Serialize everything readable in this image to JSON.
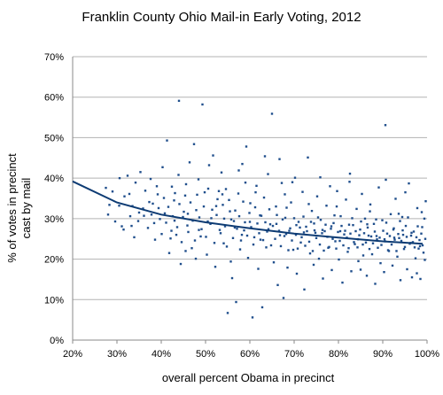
{
  "chart_data": {
    "type": "scatter",
    "title": "Franklin County Ohio Mail-in Early Voting, 2012",
    "xlabel": "overall percent Obama in precinct",
    "ylabel_lines": [
      "% of votes in precinct",
      "cast by mail"
    ],
    "xlim": [
      20,
      100
    ],
    "ylim": [
      0,
      70
    ],
    "x_ticks": [
      20,
      30,
      40,
      50,
      60,
      70,
      80,
      90,
      100
    ],
    "y_ticks": [
      0,
      10,
      20,
      30,
      40,
      50,
      60,
      70
    ],
    "x_tick_labels": [
      "20%",
      "30%",
      "40%",
      "50%",
      "60%",
      "70%",
      "80%",
      "90%",
      "100%"
    ],
    "y_tick_labels": [
      "0%",
      "10%",
      "20%",
      "30%",
      "40%",
      "50%",
      "60%",
      "70%"
    ],
    "grid": "horizontal",
    "legend": "none",
    "colors": {
      "points": "#1f4e8c",
      "trendline": "#0d3b73",
      "grid": "#b3b3b3",
      "axis": "#888888"
    },
    "trendline": {
      "type": "logarithmic",
      "x": [
        20,
        30,
        40,
        50,
        60,
        70,
        80,
        90,
        99
      ],
      "y": [
        39.2,
        34.0,
        31.0,
        29.1,
        27.6,
        26.3,
        25.3,
        24.4,
        23.8
      ]
    },
    "points": [
      [
        27.5,
        37.6
      ],
      [
        28.3,
        33.4
      ],
      [
        29.0,
        36.7
      ],
      [
        30.6,
        40.0
      ],
      [
        31.1,
        28.1
      ],
      [
        31.7,
        35.5
      ],
      [
        32.4,
        40.6
      ],
      [
        33.0,
        30.6
      ],
      [
        33.5,
        33.1
      ],
      [
        34.2,
        38.9
      ],
      [
        34.8,
        29.4
      ],
      [
        35.3,
        41.5
      ],
      [
        35.9,
        32.5
      ],
      [
        36.4,
        36.9
      ],
      [
        37.0,
        27.7
      ],
      [
        37.6,
        39.8
      ],
      [
        38.1,
        33.7
      ],
      [
        38.6,
        24.8
      ],
      [
        39.2,
        36.0
      ],
      [
        39.7,
        29.9
      ],
      [
        40.3,
        42.7
      ],
      [
        40.8,
        31.3
      ],
      [
        41.3,
        49.3
      ],
      [
        41.8,
        21.5
      ],
      [
        42.4,
        37.9
      ],
      [
        42.9,
        34.5
      ],
      [
        43.4,
        26.0
      ],
      [
        43.9,
        40.8
      ],
      [
        44.4,
        18.8
      ],
      [
        44.9,
        30.4
      ],
      [
        45.4,
        35.7
      ],
      [
        45.9,
        28.3
      ],
      [
        46.4,
        43.9
      ],
      [
        46.9,
        22.7
      ],
      [
        47.4,
        48.4
      ],
      [
        47.9,
        32.1
      ],
      [
        48.4,
        39.7
      ],
      [
        48.9,
        25.6
      ],
      [
        49.3,
        58.2
      ],
      [
        49.8,
        36.5
      ],
      [
        50.3,
        21.1
      ],
      [
        50.8,
        43.2
      ],
      [
        51.3,
        30.1
      ],
      [
        51.7,
        45.6
      ],
      [
        52.2,
        18.1
      ],
      [
        52.7,
        34.8
      ],
      [
        53.2,
        27.2
      ],
      [
        53.6,
        41.4
      ],
      [
        54.1,
        23.9
      ],
      [
        54.6,
        37.3
      ],
      [
        55.0,
        6.7
      ],
      [
        55.5,
        31.8
      ],
      [
        56.0,
        15.3
      ],
      [
        56.4,
        29.4
      ],
      [
        56.9,
        9.4
      ],
      [
        57.4,
        36.2
      ],
      [
        57.8,
        22.4
      ],
      [
        58.3,
        43.5
      ],
      [
        58.7,
        27.1
      ],
      [
        59.2,
        47.8
      ],
      [
        59.6,
        20.3
      ],
      [
        60.1,
        33.8
      ],
      [
        60.6,
        5.6
      ],
      [
        61.0,
        25.4
      ],
      [
        61.5,
        38.1
      ],
      [
        61.9,
        17.6
      ],
      [
        62.3,
        30.8
      ],
      [
        62.8,
        8.1
      ],
      [
        63.2,
        35.2
      ],
      [
        63.7,
        22.9
      ],
      [
        64.1,
        41.0
      ],
      [
        64.6,
        28.6
      ],
      [
        65.0,
        55.9
      ],
      [
        65.4,
        19.2
      ],
      [
        65.9,
        33.0
      ],
      [
        66.3,
        13.6
      ],
      [
        66.8,
        25.9
      ],
      [
        67.2,
        38.8
      ],
      [
        67.6,
        10.4
      ],
      [
        68.0,
        30.2
      ],
      [
        68.5,
        17.9
      ],
      [
        68.9,
        27.0
      ],
      [
        69.3,
        34.0
      ],
      [
        69.8,
        22.3
      ],
      [
        70.2,
        40.1
      ],
      [
        70.6,
        16.4
      ],
      [
        71.0,
        29.2
      ],
      [
        71.5,
        24.1
      ],
      [
        71.9,
        36.6
      ],
      [
        72.3,
        12.5
      ],
      [
        72.7,
        28.0
      ],
      [
        73.1,
        45.1
      ],
      [
        73.6,
        21.4
      ],
      [
        74.0,
        31.9
      ],
      [
        74.4,
        18.6
      ],
      [
        74.8,
        26.5
      ],
      [
        75.2,
        35.5
      ],
      [
        75.6,
        20.1
      ],
      [
        76.0,
        29.7
      ],
      [
        76.5,
        15.2
      ],
      [
        76.9,
        26.9
      ],
      [
        77.3,
        33.2
      ],
      [
        77.7,
        22.8
      ],
      [
        78.1,
        38.0
      ],
      [
        78.5,
        17.3
      ],
      [
        78.9,
        28.9
      ],
      [
        79.3,
        24.4
      ],
      [
        79.7,
        36.8
      ],
      [
        80.1,
        19.9
      ],
      [
        80.5,
        30.6
      ],
      [
        80.9,
        14.2
      ],
      [
        81.3,
        26.1
      ],
      [
        81.7,
        34.7
      ],
      [
        82.1,
        21.8
      ],
      [
        82.5,
        39.1
      ],
      [
        82.9,
        17.0
      ],
      [
        83.3,
        28.4
      ],
      [
        83.7,
        23.7
      ],
      [
        84.1,
        32.4
      ],
      [
        84.5,
        19.5
      ],
      [
        84.9,
        27.3
      ],
      [
        85.3,
        36.1
      ],
      [
        85.6,
        20.9
      ],
      [
        86.0,
        30.0
      ],
      [
        86.4,
        15.9
      ],
      [
        86.8,
        25.8
      ],
      [
        87.2,
        33.5
      ],
      [
        87.6,
        21.2
      ],
      [
        88.0,
        28.7
      ],
      [
        88.3,
        13.9
      ],
      [
        88.7,
        24.9
      ],
      [
        89.1,
        37.7
      ],
      [
        89.5,
        19.0
      ],
      [
        89.9,
        29.6
      ],
      [
        90.3,
        16.8
      ],
      [
        90.6,
        53.1
      ],
      [
        91.0,
        26.3
      ],
      [
        91.4,
        22.0
      ],
      [
        91.8,
        31.1
      ],
      [
        92.2,
        18.4
      ],
      [
        92.5,
        27.6
      ],
      [
        92.9,
        34.9
      ],
      [
        93.3,
        20.6
      ],
      [
        93.7,
        25.2
      ],
      [
        94.0,
        14.8
      ],
      [
        94.4,
        30.4
      ],
      [
        94.8,
        22.5
      ],
      [
        95.2,
        28.2
      ],
      [
        95.5,
        17.5
      ],
      [
        95.9,
        38.7
      ],
      [
        96.3,
        24.0
      ],
      [
        96.6,
        15.5
      ],
      [
        97.0,
        26.8
      ],
      [
        97.4,
        20.2
      ],
      [
        97.8,
        32.6
      ],
      [
        98.1,
        22.6
      ],
      [
        98.5,
        15.1
      ],
      [
        98.9,
        27.9
      ],
      [
        99.2,
        21.6
      ],
      [
        99.6,
        25.0
      ],
      [
        30.5,
        33.2
      ],
      [
        31.5,
        27.3
      ],
      [
        32.8,
        36.1
      ],
      [
        33.9,
        25.4
      ],
      [
        36.1,
        30.7
      ],
      [
        37.3,
        34.1
      ],
      [
        38.4,
        28.9
      ],
      [
        39.4,
        32.6
      ],
      [
        40.1,
        26.2
      ],
      [
        40.6,
        35.1
      ],
      [
        41.1,
        29.0
      ],
      [
        41.6,
        32.9
      ],
      [
        42.1,
        25.1
      ],
      [
        42.6,
        30.6
      ],
      [
        43.1,
        36.3
      ],
      [
        43.6,
        27.9
      ],
      [
        44.1,
        33.6
      ],
      [
        44.6,
        24.2
      ],
      [
        45.1,
        31.7
      ],
      [
        45.6,
        38.5
      ],
      [
        46.1,
        26.7
      ],
      [
        46.6,
        34.0
      ],
      [
        47.1,
        29.5
      ],
      [
        47.6,
        24.6
      ],
      [
        48.1,
        35.9
      ],
      [
        48.6,
        30.3
      ],
      [
        49.1,
        27.4
      ],
      [
        49.6,
        33.0
      ],
      [
        50.1,
        25.5
      ],
      [
        50.6,
        37.4
      ],
      [
        51.1,
        28.7
      ],
      [
        51.5,
        32.2
      ],
      [
        52.0,
        24.0
      ],
      [
        52.5,
        30.9
      ],
      [
        53.0,
        36.8
      ],
      [
        53.4,
        26.4
      ],
      [
        53.9,
        33.4
      ],
      [
        54.4,
        28.1
      ],
      [
        54.8,
        23.1
      ],
      [
        55.3,
        34.6
      ],
      [
        55.8,
        29.8
      ],
      [
        56.2,
        25.2
      ],
      [
        56.7,
        32.0
      ],
      [
        57.1,
        27.5
      ],
      [
        57.6,
        30.6
      ],
      [
        58.0,
        24.6
      ],
      [
        58.5,
        34.2
      ],
      [
        58.9,
        29.1
      ],
      [
        59.4,
        25.8
      ],
      [
        59.9,
        31.4
      ],
      [
        60.3,
        27.9
      ],
      [
        60.8,
        23.6
      ],
      [
        61.2,
        32.8
      ],
      [
        61.7,
        28.8
      ],
      [
        62.1,
        26.4
      ],
      [
        62.6,
        30.7
      ],
      [
        63.0,
        24.7
      ],
      [
        63.5,
        29.1
      ],
      [
        63.9,
        26.8
      ],
      [
        64.4,
        32.3
      ],
      [
        64.8,
        23.4
      ],
      [
        65.2,
        28.2
      ],
      [
        65.7,
        25.0
      ],
      [
        66.1,
        30.9
      ],
      [
        66.6,
        27.0
      ],
      [
        67.0,
        23.2
      ],
      [
        67.4,
        29.8
      ],
      [
        67.8,
        25.7
      ],
      [
        68.3,
        32.7
      ],
      [
        68.7,
        22.2
      ],
      [
        69.1,
        27.6
      ],
      [
        69.5,
        24.6
      ],
      [
        70.0,
        30.1
      ],
      [
        70.4,
        26.0
      ],
      [
        70.8,
        22.6
      ],
      [
        71.3,
        27.8
      ],
      [
        71.7,
        25.4
      ],
      [
        72.1,
        30.5
      ],
      [
        72.5,
        23.3
      ],
      [
        72.9,
        26.9
      ],
      [
        73.4,
        24.3
      ],
      [
        73.8,
        29.2
      ],
      [
        74.2,
        22.0
      ],
      [
        74.6,
        27.1
      ],
      [
        75.0,
        25.2
      ],
      [
        75.4,
        30.3
      ],
      [
        75.8,
        23.6
      ],
      [
        76.3,
        26.4
      ],
      [
        76.7,
        22.1
      ],
      [
        77.1,
        28.5
      ],
      [
        77.5,
        25.5
      ],
      [
        77.9,
        23.0
      ],
      [
        78.3,
        27.5
      ],
      [
        78.7,
        25.0
      ],
      [
        79.1,
        30.8
      ],
      [
        79.5,
        22.6
      ],
      [
        79.9,
        26.7
      ],
      [
        80.3,
        24.5
      ],
      [
        80.7,
        28.2
      ],
      [
        81.1,
        23.4
      ],
      [
        81.5,
        27.0
      ],
      [
        81.9,
        25.3
      ],
      [
        82.3,
        22.7
      ],
      [
        82.7,
        26.3
      ],
      [
        83.1,
        30.1
      ],
      [
        83.5,
        24.2
      ],
      [
        83.9,
        26.9
      ],
      [
        84.3,
        22.9
      ],
      [
        84.7,
        25.9
      ],
      [
        85.1,
        29.3
      ],
      [
        85.5,
        23.6
      ],
      [
        85.8,
        26.4
      ],
      [
        86.2,
        24.1
      ],
      [
        86.6,
        27.8
      ],
      [
        87.0,
        22.5
      ],
      [
        87.4,
        25.6
      ],
      [
        87.8,
        23.9
      ],
      [
        88.2,
        26.8
      ],
      [
        88.5,
        29.8
      ],
      [
        88.9,
        22.8
      ],
      [
        89.3,
        25.3
      ],
      [
        89.7,
        23.5
      ],
      [
        90.1,
        27.0
      ],
      [
        90.5,
        24.4
      ],
      [
        90.8,
        29.0
      ],
      [
        91.2,
        22.2
      ],
      [
        91.6,
        25.7
      ],
      [
        92.0,
        23.6
      ],
      [
        92.4,
        27.3
      ],
      [
        92.7,
        24.8
      ],
      [
        93.1,
        22.0
      ],
      [
        93.5,
        26.2
      ],
      [
        93.9,
        29.4
      ],
      [
        94.2,
        24.5
      ],
      [
        94.6,
        26.0
      ],
      [
        95.0,
        23.0
      ],
      [
        95.4,
        25.5
      ],
      [
        95.7,
        30.3
      ],
      [
        96.1,
        23.8
      ],
      [
        96.5,
        26.5
      ],
      [
        96.8,
        24.2
      ],
      [
        97.2,
        22.9
      ],
      [
        97.6,
        25.4
      ],
      [
        97.9,
        28.1
      ],
      [
        98.3,
        24.7
      ],
      [
        98.7,
        26.3
      ],
      [
        99.0,
        23.4
      ],
      [
        99.4,
        30.0
      ],
      [
        35.0,
        31.5
      ],
      [
        39.0,
        38.0
      ],
      [
        43.0,
        29.5
      ],
      [
        46.0,
        31.2
      ],
      [
        48.5,
        27.2
      ],
      [
        50.5,
        29.3
      ],
      [
        52.4,
        33.1
      ],
      [
        54.2,
        30.0
      ],
      [
        56.6,
        27.8
      ],
      [
        58.2,
        26.0
      ],
      [
        60.0,
        29.2
      ],
      [
        62.4,
        24.8
      ],
      [
        64.2,
        27.4
      ],
      [
        66.0,
        28.7
      ],
      [
        68.2,
        26.2
      ],
      [
        70.5,
        28.4
      ],
      [
        72.2,
        26.6
      ],
      [
        74.5,
        28.8
      ],
      [
        76.4,
        27.2
      ],
      [
        78.4,
        28.1
      ],
      [
        80.4,
        26.9
      ],
      [
        82.4,
        28.5
      ],
      [
        84.4,
        24.9
      ],
      [
        86.5,
        28.6
      ],
      [
        88.6,
        25.7
      ],
      [
        90.4,
        24.9
      ],
      [
        92.6,
        25.3
      ],
      [
        94.5,
        27.1
      ],
      [
        96.4,
        25.8
      ],
      [
        98.4,
        23.2
      ],
      [
        44.0,
        59.1
      ],
      [
        45.5,
        22.0
      ],
      [
        47.8,
        20.1
      ],
      [
        55.7,
        19.4
      ],
      [
        57.5,
        41.9
      ],
      [
        63.4,
        45.4
      ],
      [
        66.7,
        44.7
      ],
      [
        69.6,
        39.0
      ],
      [
        75.9,
        40.2
      ],
      [
        82.6,
        41.1
      ],
      [
        85.0,
        17.4
      ],
      [
        90.7,
        39.6
      ],
      [
        95.1,
        36.5
      ],
      [
        97.7,
        16.5
      ],
      [
        99.7,
        34.3
      ],
      [
        28.0,
        31.0
      ],
      [
        29.6,
        29.3
      ],
      [
        33.3,
        28.2
      ],
      [
        37.8,
        31.0
      ],
      [
        42.3,
        27.0
      ],
      [
        53.8,
        36.0
      ],
      [
        59.0,
        38.9
      ],
      [
        61.3,
        36.5
      ],
      [
        67.9,
        36.0
      ],
      [
        73.3,
        33.6
      ],
      [
        79.6,
        33.0
      ],
      [
        87.1,
        31.8
      ],
      [
        93.6,
        31.2
      ],
      [
        98.8,
        31.6
      ],
      [
        99.5,
        19.8
      ]
    ]
  }
}
